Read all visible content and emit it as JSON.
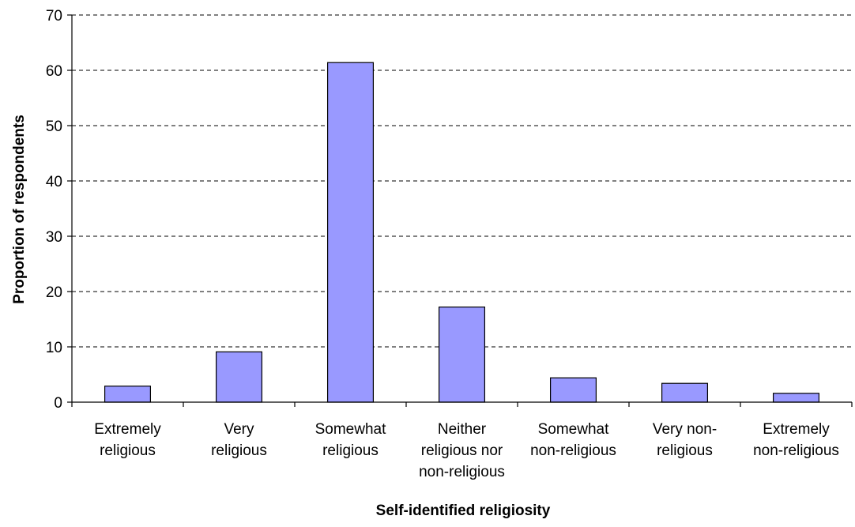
{
  "chart_data": {
    "type": "bar",
    "title": "",
    "xlabel": "Self-identified religiosity",
    "ylabel": "Proportion of respondents",
    "ylim": [
      0,
      70
    ],
    "yticks": [
      0,
      10,
      20,
      30,
      40,
      50,
      60,
      70
    ],
    "grid": true,
    "legend": "none",
    "bar_color": "#9999ff",
    "categories": [
      [
        "Extremely",
        "religious"
      ],
      [
        "Very",
        "religious"
      ],
      [
        "Somewhat",
        "religious"
      ],
      [
        "Neither",
        "religious nor",
        "non-religious"
      ],
      [
        "Somewhat",
        "non-religious"
      ],
      [
        "Very non-",
        "religious"
      ],
      [
        "Extremely",
        "non-religious"
      ]
    ],
    "values": [
      2.9,
      9.1,
      61.4,
      17.2,
      4.4,
      3.4,
      1.6
    ]
  }
}
